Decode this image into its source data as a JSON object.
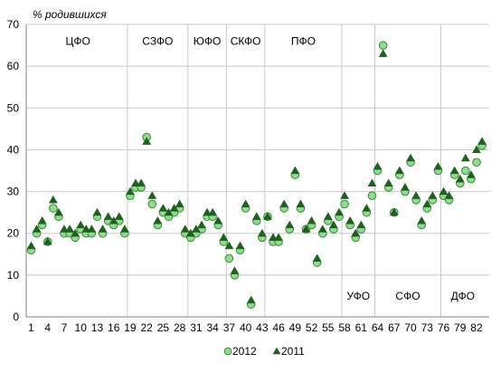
{
  "chart_data": {
    "type": "scatter",
    "title": "",
    "ylabel": "% родившихся",
    "xlabel": "",
    "ylim": [
      0,
      70
    ],
    "xlim": [
      1,
      83
    ],
    "yticks": [
      0,
      10,
      20,
      30,
      40,
      50,
      60,
      70
    ],
    "xticks": [
      1,
      4,
      7,
      10,
      13,
      16,
      19,
      22,
      25,
      28,
      31,
      34,
      37,
      40,
      43,
      46,
      49,
      52,
      55,
      58,
      61,
      64,
      67,
      70,
      73,
      76,
      79,
      82
    ],
    "grid": "horizontal",
    "legend_position": "bottom",
    "regions": [
      {
        "label": "ЦФО",
        "label_y": 66,
        "divider_after": 18
      },
      {
        "label": "СЗФО",
        "label_y": 66,
        "divider_after": 29
      },
      {
        "label": "ЮФО",
        "label_y": 66,
        "divider_after": 36
      },
      {
        "label": "СКФО",
        "label_y": 66,
        "divider_after": 43
      },
      {
        "label": "ПФО",
        "label_y": 66,
        "divider_after": 57
      },
      {
        "label": "УФО",
        "label_y": 5,
        "divider_after": 63
      },
      {
        "label": "СФО",
        "label_y": 5,
        "divider_after": 75
      },
      {
        "label": "ДФО",
        "label_y": 5,
        "divider_after": null
      }
    ],
    "series": [
      {
        "name": "2012",
        "marker": "circle",
        "color": "#8fdc8f",
        "stroke": "#2e8b2e",
        "x": [
          1,
          2,
          3,
          4,
          5,
          6,
          7,
          8,
          9,
          10,
          11,
          12,
          13,
          14,
          15,
          16,
          17,
          18,
          19,
          20,
          21,
          22,
          23,
          24,
          25,
          26,
          27,
          28,
          29,
          30,
          31,
          32,
          33,
          34,
          35,
          36,
          37,
          38,
          39,
          40,
          41,
          42,
          43,
          44,
          45,
          46,
          47,
          48,
          49,
          50,
          51,
          52,
          53,
          54,
          55,
          56,
          57,
          58,
          59,
          60,
          61,
          62,
          63,
          64,
          65,
          66,
          67,
          68,
          69,
          70,
          71,
          72,
          73,
          74,
          75,
          76,
          77,
          78,
          79,
          80,
          81,
          82,
          83
        ],
        "values": [
          16,
          20,
          22,
          18,
          26,
          24,
          20,
          20,
          19,
          21,
          20,
          20,
          24,
          20,
          23,
          22,
          23,
          20,
          29,
          31,
          31,
          43,
          27,
          22,
          25,
          24,
          25,
          26,
          20,
          19,
          20,
          21,
          24,
          24,
          22,
          18,
          14,
          10,
          16,
          26,
          3,
          23,
          19,
          24,
          18,
          18,
          26,
          21,
          34,
          26,
          21,
          22,
          13,
          20,
          23,
          21,
          24,
          27,
          22,
          19,
          21,
          25,
          29,
          35,
          65,
          31,
          25,
          34,
          30,
          37,
          28,
          22,
          26,
          28,
          35,
          29,
          28,
          34,
          32,
          35,
          33,
          37,
          41
        ]
      },
      {
        "name": "2011",
        "marker": "triangle",
        "color": "#1f5f1f",
        "stroke": "#1f5f1f",
        "x": [
          1,
          2,
          3,
          4,
          5,
          6,
          7,
          8,
          9,
          10,
          11,
          12,
          13,
          14,
          15,
          16,
          17,
          18,
          19,
          20,
          21,
          22,
          23,
          24,
          25,
          26,
          27,
          28,
          29,
          30,
          31,
          32,
          33,
          34,
          35,
          36,
          37,
          38,
          39,
          40,
          41,
          42,
          43,
          44,
          45,
          46,
          47,
          48,
          49,
          50,
          51,
          52,
          53,
          54,
          55,
          56,
          57,
          58,
          59,
          60,
          61,
          62,
          63,
          64,
          65,
          66,
          67,
          68,
          69,
          70,
          71,
          72,
          73,
          74,
          75,
          76,
          77,
          78,
          79,
          80,
          81,
          82,
          83
        ],
        "values": [
          17,
          21,
          23,
          18,
          28,
          25,
          21,
          21,
          20,
          22,
          21,
          21,
          25,
          21,
          24,
          23,
          24,
          21,
          30,
          32,
          32,
          42,
          29,
          23,
          26,
          25,
          26,
          27,
          21,
          20,
          21,
          22,
          25,
          25,
          23,
          19,
          17,
          11,
          17,
          27,
          4,
          24,
          20,
          24,
          19,
          19,
          27,
          22,
          35,
          27,
          21,
          23,
          14,
          21,
          24,
          22,
          25,
          29,
          23,
          20,
          22,
          26,
          32,
          36,
          63,
          32,
          25,
          35,
          31,
          38,
          29,
          23,
          27,
          29,
          36,
          30,
          29,
          35,
          33,
          38,
          34,
          40,
          42
        ]
      }
    ]
  }
}
